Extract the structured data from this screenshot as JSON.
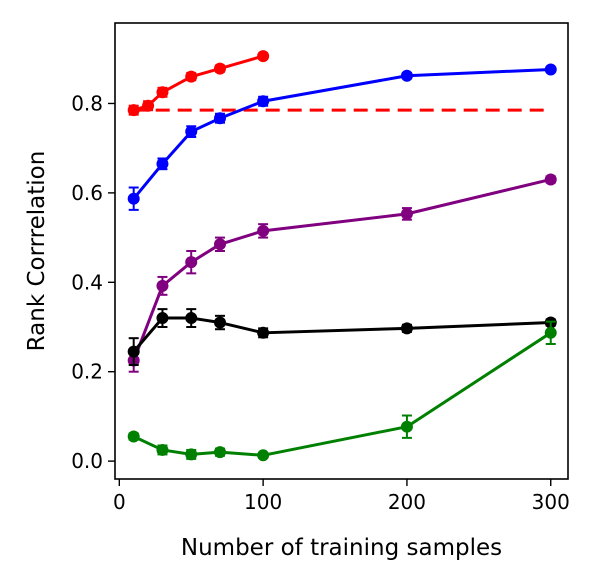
{
  "chart_data": {
    "type": "line",
    "title": "",
    "xlabel": "Number of training samples",
    "ylabel": "Rank Corrrelation",
    "xlim": [
      -3,
      312
    ],
    "ylim": [
      -0.04,
      0.98
    ],
    "xticks": [
      0,
      100,
      200,
      300
    ],
    "yticks": [
      0.0,
      0.2,
      0.4,
      0.6,
      0.8
    ],
    "xtick_labels": [
      "0",
      "100",
      "200",
      "300"
    ],
    "ytick_labels": [
      "0.0",
      "0.2",
      "0.4",
      "0.6",
      "0.8"
    ],
    "grid": false,
    "legend": "none",
    "series": [
      {
        "color": "#ff0000",
        "x": [
          10,
          20,
          30,
          50,
          70,
          100
        ],
        "y": [
          0.785,
          0.795,
          0.825,
          0.86,
          0.878,
          0.906
        ],
        "err": [
          0.01,
          0.01,
          0.01,
          0.008,
          0.007,
          0.006
        ]
      },
      {
        "color": "#0000ff",
        "x": [
          10,
          30,
          50,
          70,
          100,
          200,
          300
        ],
        "y": [
          0.587,
          0.665,
          0.737,
          0.767,
          0.805,
          0.862,
          0.876
        ],
        "err": [
          0.025,
          0.012,
          0.012,
          0.01,
          0.01,
          0.006,
          0.004
        ]
      },
      {
        "color": "#800080",
        "x": [
          10,
          30,
          50,
          70,
          100,
          200,
          300
        ],
        "y": [
          0.225,
          0.392,
          0.445,
          0.485,
          0.515,
          0.553,
          0.63
        ],
        "err": [
          0.025,
          0.02,
          0.025,
          0.015,
          0.015,
          0.013,
          0.007
        ]
      },
      {
        "color": "#000000",
        "x": [
          10,
          30,
          50,
          70,
          100,
          200,
          300
        ],
        "y": [
          0.245,
          0.32,
          0.32,
          0.31,
          0.287,
          0.297,
          0.31
        ],
        "err": [
          0.03,
          0.02,
          0.02,
          0.015,
          0.01,
          0.008,
          0.007
        ]
      },
      {
        "color": "#008000",
        "x": [
          10,
          30,
          50,
          70,
          100,
          200,
          300
        ],
        "y": [
          0.055,
          0.025,
          0.015,
          0.02,
          0.013,
          0.077,
          0.287
        ],
        "err": [
          0.007,
          0.01,
          0.01,
          0.008,
          0.005,
          0.025,
          0.025
        ]
      }
    ],
    "reference_line": {
      "y": 0.785,
      "x_range": [
        10,
        300
      ],
      "color": "#ff0000",
      "style": "dashed"
    }
  }
}
